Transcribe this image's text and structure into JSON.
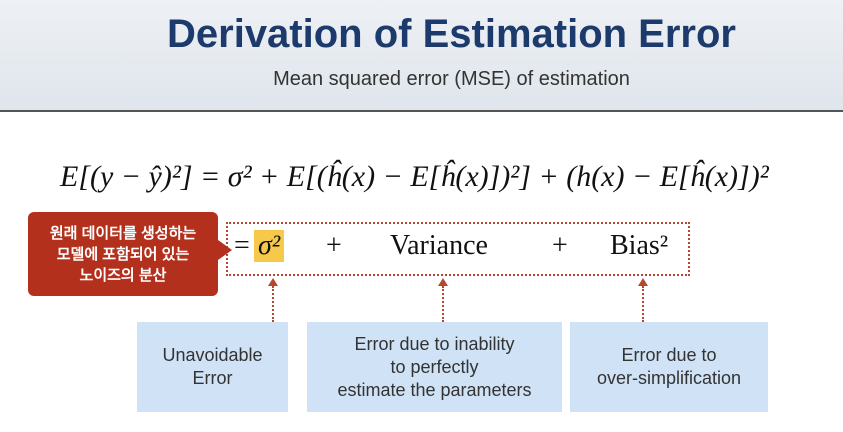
{
  "header": {
    "title": "Derivation of Estimation Error",
    "subtitle": "Mean squared error (MSE) of estimation"
  },
  "equation": "E[(y − ŷ)²] = σ² + E[(ĥ(x) − E[ĥ(x)])²] + (h(x) − E[ĥ(x)])²",
  "decomposition": {
    "equals": "=",
    "noise": "σ²",
    "plus1": "+",
    "variance": "Variance",
    "plus2": "+",
    "bias": "Bias²"
  },
  "callout": {
    "lines": [
      "원래 데이터를 생성하는",
      "모델에 포함되어 있는",
      "노이즈의 분산"
    ]
  },
  "boxes": [
    {
      "lines": [
        "Unavoidable",
        "Error"
      ]
    },
    {
      "lines": [
        "Error due to inability",
        "to perfectly",
        "estimate the parameters"
      ]
    },
    {
      "lines": [
        "Error due to",
        "over-simplification"
      ]
    }
  ]
}
